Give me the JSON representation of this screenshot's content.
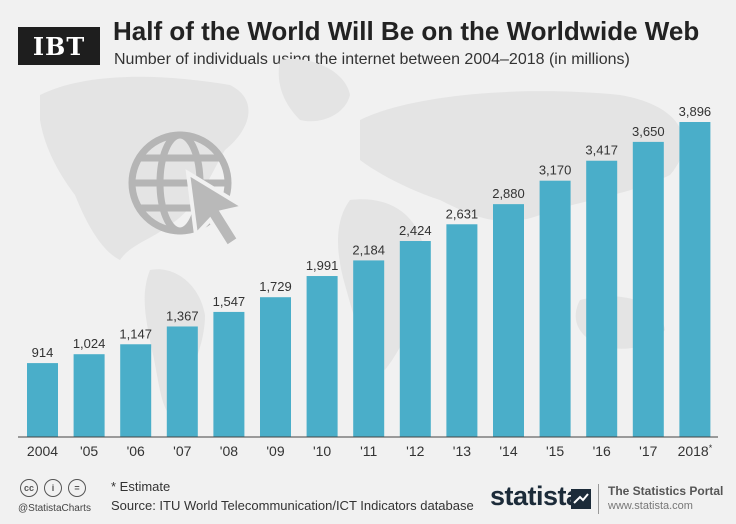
{
  "brand": {
    "logo": "IBT"
  },
  "header": {
    "title": "Half of the World Will Be on the Worldwide Web",
    "subtitle": "Number of individuals using the internet between 2004–2018 (in millions)"
  },
  "chart_data": {
    "type": "bar",
    "title": "Half of the World Will Be on the Worldwide Web",
    "subtitle": "Number of individuals using the internet between 2004–2018 (in millions)",
    "categories": [
      "2004",
      "'05",
      "'06",
      "'07",
      "'08",
      "'09",
      "'10",
      "'11",
      "'12",
      "'13",
      "'14",
      "'15",
      "'16",
      "'17",
      "2018*"
    ],
    "values": [
      914,
      1024,
      1147,
      1367,
      1547,
      1729,
      1991,
      2184,
      2424,
      2631,
      2880,
      3170,
      3417,
      3650,
      3896
    ],
    "value_labels": [
      "914",
      "1,024",
      "1,147",
      "1,367",
      "1,547",
      "1,729",
      "1,991",
      "2,184",
      "2,424",
      "2,631",
      "2,880",
      "3,170",
      "3,417",
      "3,650",
      "3,896"
    ],
    "ylim": [
      0,
      3896
    ],
    "bar_color": "#4aaec9",
    "grid": false,
    "legend": "none"
  },
  "footer": {
    "estimate_note": "* Estimate",
    "source": "Source: ITU World Telecommunication/ICT Indicators database",
    "handle": "@StatistaCharts",
    "statista_brand": "statista",
    "portal_name": "The Statistics Portal",
    "portal_url": "www.statista.com"
  },
  "colors": {
    "background": "#f1f1f1",
    "bar": "#4aaec9",
    "map": "#e3e3e3",
    "icon": "#b5b5b5"
  },
  "icons": [
    "globe-cursor-icon",
    "cc-icon",
    "by-icon",
    "nd-icon",
    "statista-logo-icon"
  ]
}
